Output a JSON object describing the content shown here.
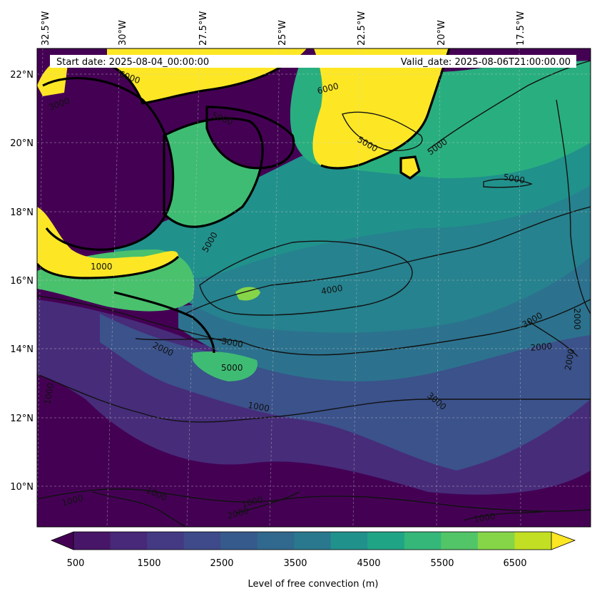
{
  "header": {
    "start_date": "Start date: 2025-08-04_00:00:00",
    "valid_date": "Valid_date: 2025-08-06T21:00:00.00"
  },
  "axes": {
    "lon_ticks": [
      "32.5°W",
      "30°W",
      "27.5°W",
      "25°W",
      "22.5°W",
      "20°W",
      "17.5°W"
    ],
    "lat_ticks": [
      "22°N",
      "20°N",
      "18°N",
      "16°N",
      "14°N",
      "12°N",
      "10°N"
    ]
  },
  "colorbar": {
    "label": "Level of free convection (m)",
    "tick_labels": [
      "500",
      "1500",
      "2500",
      "3500",
      "4500",
      "5500",
      "6500"
    ],
    "colors": [
      "#440154",
      "#481668",
      "#482878",
      "#443983",
      "#3e4a89",
      "#375a8c",
      "#31688e",
      "#2a788e",
      "#21918c",
      "#20a486",
      "#35b779",
      "#52c569",
      "#86d549",
      "#c2df23",
      "#fde725"
    ]
  },
  "contour_labels": [
    "6000",
    "5000",
    "5000",
    "5000",
    "5000",
    "5000",
    "4000",
    "3000",
    "3000",
    "3000",
    "2000",
    "2000",
    "2000",
    "2000",
    "1000",
    "1000",
    "1000",
    "1000",
    "1000",
    "1000",
    "1000",
    "2000",
    "6000",
    "5000",
    "3000"
  ]
}
